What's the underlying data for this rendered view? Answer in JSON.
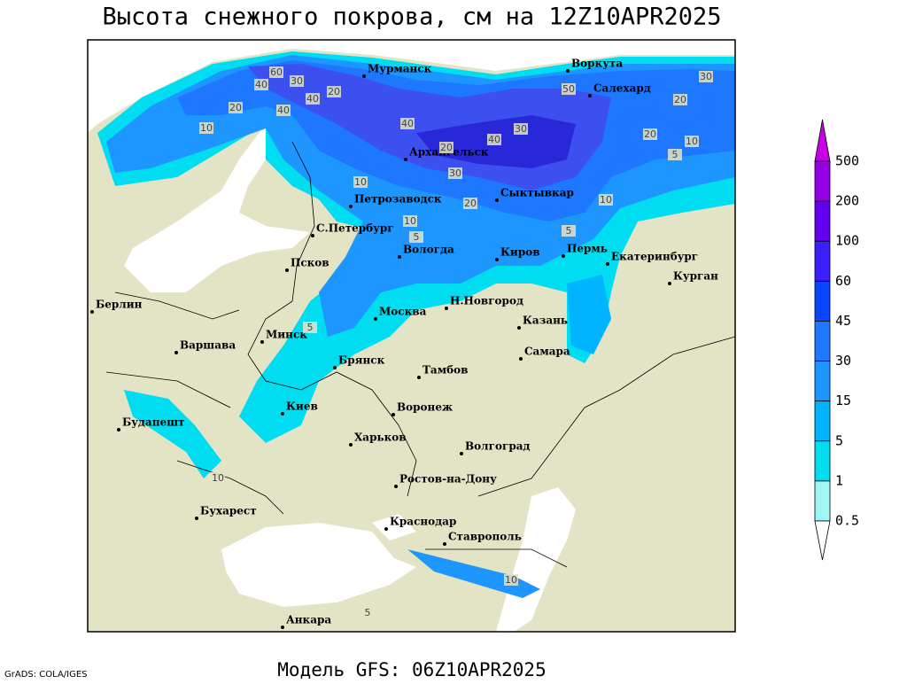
{
  "header": {
    "title": "Высота снежного покрова, см на 12Z10APR2025"
  },
  "footer": {
    "model": "Модель GFS: 06Z10APR2025",
    "credit": "GrADS: COLA/IGES"
  },
  "legend": {
    "levels": [
      "500",
      "200",
      "100",
      "60",
      "45",
      "30",
      "15",
      "5",
      "1",
      "0.5"
    ],
    "colors": [
      "#c800e6",
      "#9600e6",
      "#6400f0",
      "#3c1eff",
      "#0a46ff",
      "#1e78ff",
      "#1e96ff",
      "#00b4ff",
      "#00dcf0",
      "#a0f5f5",
      "#ffffff"
    ]
  },
  "cities": [
    "Мурманск",
    "Воркута",
    "Салехард",
    "Архангельск",
    "Петрозаводск",
    "Сыктывкар",
    "С.Петербург",
    "Вологда",
    "Киров",
    "Пермь",
    "Екатеринбург",
    "Курган",
    "Псков",
    "Берлин",
    "Н.Новгород",
    "Москва",
    "Казань",
    "Минск",
    "Варшава",
    "Самара",
    "Брянск",
    "Тамбов",
    "Киев",
    "Воронеж",
    "Будапешт",
    "Харьков",
    "Волгоград",
    "Ростов-на-Дону",
    "Бухарест",
    "Краснодар",
    "Ставрополь",
    "Анкара"
  ],
  "contour_labels": [
    "60",
    "40",
    "30",
    "20",
    "20",
    "10",
    "40",
    "40",
    "20",
    "10",
    "40",
    "40",
    "30",
    "50",
    "30",
    "20",
    "20",
    "10",
    "5",
    "30",
    "20",
    "10",
    "10",
    "5",
    "5",
    "5",
    "10",
    "10",
    "5"
  ]
}
